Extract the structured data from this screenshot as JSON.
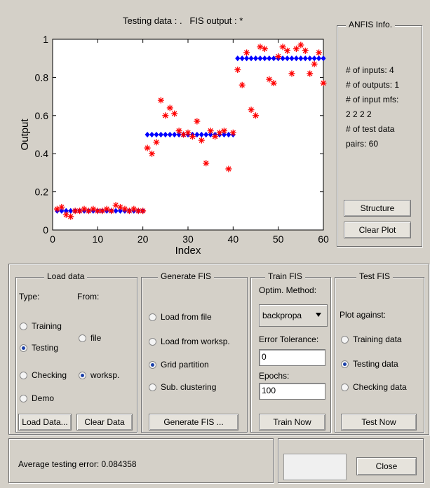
{
  "plot": {
    "title": "Testing data : .   FIS output : *"
  },
  "chart_data": {
    "type": "scatter",
    "xlabel": "Index",
    "ylabel": "Output",
    "xlim": [
      0,
      60
    ],
    "ylim": [
      0,
      1
    ],
    "x_ticks": [
      "0",
      "10",
      "20",
      "30",
      "40",
      "50",
      "60"
    ],
    "y_ticks": [
      "0",
      "0.2",
      "0.4",
      "0.6",
      "0.8",
      "1"
    ],
    "series": [
      {
        "marker": "diamond",
        "color": "#0000ff",
        "x": [
          1,
          2,
          3,
          4,
          5,
          6,
          7,
          8,
          9,
          10,
          11,
          12,
          13,
          14,
          15,
          16,
          17,
          18,
          19,
          20,
          21,
          22,
          23,
          24,
          25,
          26,
          27,
          28,
          29,
          30,
          31,
          32,
          33,
          34,
          35,
          36,
          37,
          38,
          39,
          40,
          41,
          42,
          43,
          44,
          45,
          46,
          47,
          48,
          49,
          50,
          51,
          52,
          53,
          54,
          55,
          56,
          57,
          58,
          59,
          60
        ],
        "y": [
          0.1,
          0.1,
          0.1,
          0.1,
          0.1,
          0.1,
          0.1,
          0.1,
          0.1,
          0.1,
          0.1,
          0.1,
          0.1,
          0.1,
          0.1,
          0.1,
          0.1,
          0.1,
          0.1,
          0.1,
          0.5,
          0.5,
          0.5,
          0.5,
          0.5,
          0.5,
          0.5,
          0.5,
          0.5,
          0.5,
          0.5,
          0.5,
          0.5,
          0.5,
          0.5,
          0.5,
          0.5,
          0.5,
          0.5,
          0.5,
          0.9,
          0.9,
          0.9,
          0.9,
          0.9,
          0.9,
          0.9,
          0.9,
          0.9,
          0.9,
          0.9,
          0.9,
          0.9,
          0.9,
          0.9,
          0.9,
          0.9,
          0.9,
          0.9,
          0.9
        ]
      },
      {
        "marker": "star",
        "color": "#ff0000",
        "x": [
          1,
          2,
          3,
          4,
          5,
          6,
          7,
          8,
          9,
          10,
          11,
          12,
          13,
          14,
          15,
          16,
          17,
          18,
          19,
          20,
          21,
          22,
          23,
          24,
          25,
          26,
          27,
          28,
          29,
          30,
          31,
          32,
          33,
          34,
          35,
          36,
          37,
          38,
          39,
          40,
          41,
          42,
          43,
          44,
          45,
          46,
          47,
          48,
          49,
          50,
          51,
          52,
          53,
          54,
          55,
          56,
          57,
          58,
          59,
          60
        ],
        "y": [
          0.11,
          0.12,
          0.08,
          0.07,
          0.1,
          0.1,
          0.11,
          0.1,
          0.11,
          0.1,
          0.1,
          0.11,
          0.1,
          0.13,
          0.12,
          0.11,
          0.1,
          0.11,
          0.1,
          0.1,
          0.43,
          0.4,
          0.46,
          0.68,
          0.6,
          0.64,
          0.61,
          0.52,
          0.5,
          0.51,
          0.49,
          0.57,
          0.47,
          0.35,
          0.52,
          0.49,
          0.51,
          0.52,
          0.32,
          0.51,
          0.84,
          0.76,
          0.93,
          0.63,
          0.6,
          0.96,
          0.95,
          0.79,
          0.77,
          0.91,
          0.96,
          0.94,
          0.82,
          0.95,
          0.97,
          0.94,
          0.82,
          0.87,
          0.93,
          0.77
        ]
      }
    ],
    "grid": false
  },
  "anfis_info": {
    "title": "ANFIS Info.",
    "lines": [
      "# of inputs: 4",
      "# of outputs: 1",
      "# of input mfs:",
      "2 2 2 2",
      "# of test data",
      "pairs: 60"
    ],
    "structure_button": "Structure",
    "clear_plot_button": "Clear Plot"
  },
  "load_data": {
    "title": "Load data",
    "type_label": "Type:",
    "from_label": "From:",
    "types": [
      {
        "label": "Training",
        "selected": false
      },
      {
        "label": "Testing",
        "selected": true
      },
      {
        "label": "Checking",
        "selected": false
      },
      {
        "label": "Demo",
        "selected": false
      }
    ],
    "sources": [
      {
        "label": "file",
        "selected": false
      },
      {
        "label": "worksp.",
        "selected": true
      }
    ],
    "load_button": "Load Data...",
    "clear_button": "Clear Data"
  },
  "generate_fis": {
    "title": "Generate FIS",
    "options": [
      {
        "label": "Load from file",
        "selected": false
      },
      {
        "label": "Load from worksp.",
        "selected": false
      },
      {
        "label": "Grid partition",
        "selected": true
      },
      {
        "label": "Sub. clustering",
        "selected": false
      }
    ],
    "button": "Generate FIS ..."
  },
  "train_fis": {
    "title": "Train FIS",
    "method_label": "Optim. Method:",
    "method_value": "backpropa",
    "tolerance_label": "Error Tolerance:",
    "tolerance_value": "0",
    "epochs_label": "Epochs:",
    "epochs_value": "100",
    "button": "Train Now"
  },
  "test_fis": {
    "title": "Test FIS",
    "plot_against_label": "Plot against:",
    "options": [
      {
        "label": "Training data",
        "selected": false
      },
      {
        "label": "Testing data",
        "selected": true
      },
      {
        "label": "Checking data",
        "selected": false
      }
    ],
    "button": "Test Now"
  },
  "status": {
    "message": "Average testing error: 0.084358",
    "close_button": "Close"
  }
}
